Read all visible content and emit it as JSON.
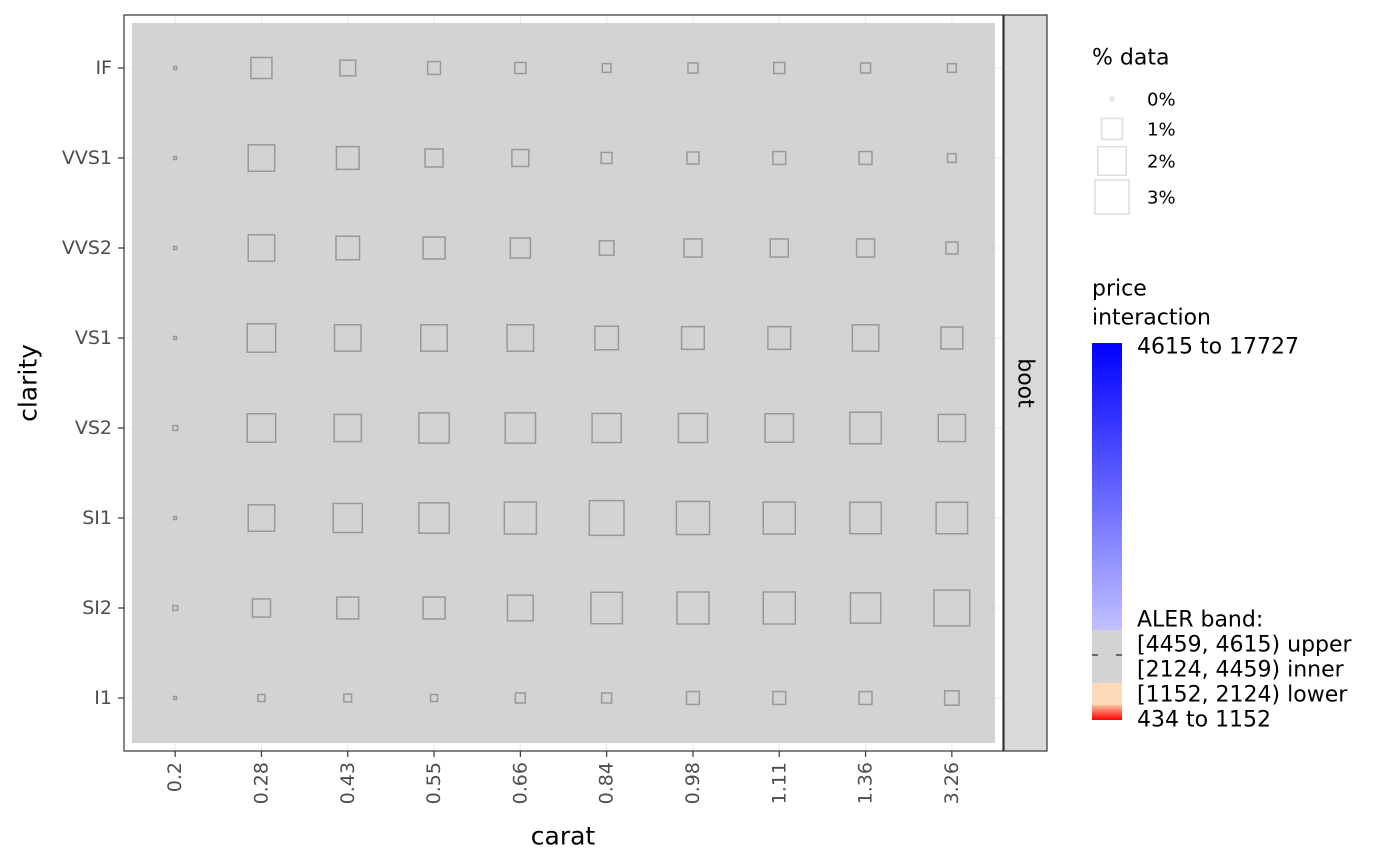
{
  "chart_data": {
    "type": "square-grid",
    "x_label": "carat",
    "y_label": "clarity",
    "facet": "boot",
    "x_categories": [
      "0.2",
      "0.28",
      "0.43",
      "0.55",
      "0.66",
      "0.84",
      "0.98",
      "1.11",
      "1.36",
      "3.26"
    ],
    "y_categories": [
      "IF",
      "VVS1",
      "VVS2",
      "VS1",
      "VS2",
      "SI1",
      "SI2",
      "I1"
    ],
    "sizes": [
      [
        0,
        1.0,
        0.5,
        0.3,
        0.2,
        0.1,
        0.15,
        0.2,
        0.15,
        0.1
      ],
      [
        0,
        1.7,
        1.2,
        0.7,
        0.6,
        0.2,
        0.25,
        0.3,
        0.3,
        0.1
      ],
      [
        0,
        1.7,
        1.3,
        1.1,
        0.9,
        0.4,
        0.7,
        0.7,
        0.7,
        0.25
      ],
      [
        0,
        2.0,
        1.7,
        1.7,
        1.7,
        1.3,
        1.2,
        1.2,
        1.7,
        1.1
      ],
      [
        0.01,
        2.0,
        1.8,
        2.3,
        2.3,
        2.1,
        2.1,
        2.0,
        2.5,
        1.8
      ],
      [
        0,
        1.7,
        2.1,
        2.3,
        2.6,
        3.1,
        2.8,
        2.6,
        2.5,
        2.5
      ],
      [
        0.01,
        0.7,
        1.1,
        1.1,
        1.6,
        2.5,
        2.6,
        2.6,
        2.3,
        3.3
      ],
      [
        0,
        0.05,
        0.07,
        0.05,
        0.15,
        0.15,
        0.3,
        0.3,
        0.3,
        0.4
      ]
    ],
    "mark_color": "#999999",
    "panel_fill": "#d3d3d3",
    "grid": true,
    "size_legend": {
      "title": "% data",
      "values": [
        {
          "value": 0,
          "label": "0%"
        },
        {
          "value": 1,
          "label": "1%"
        },
        {
          "value": 2,
          "label": "2%"
        },
        {
          "value": 3,
          "label": "3%"
        }
      ]
    },
    "color_legend": {
      "title": [
        "price",
        "interaction"
      ],
      "top_label": "4615 to 17727",
      "band_title": "ALER band:",
      "band_labels": [
        "[4459, 4615) upper",
        "[2124, 4459) inner",
        "[1152, 2124) lower"
      ],
      "bottom_label": "434 to 1152"
    }
  }
}
